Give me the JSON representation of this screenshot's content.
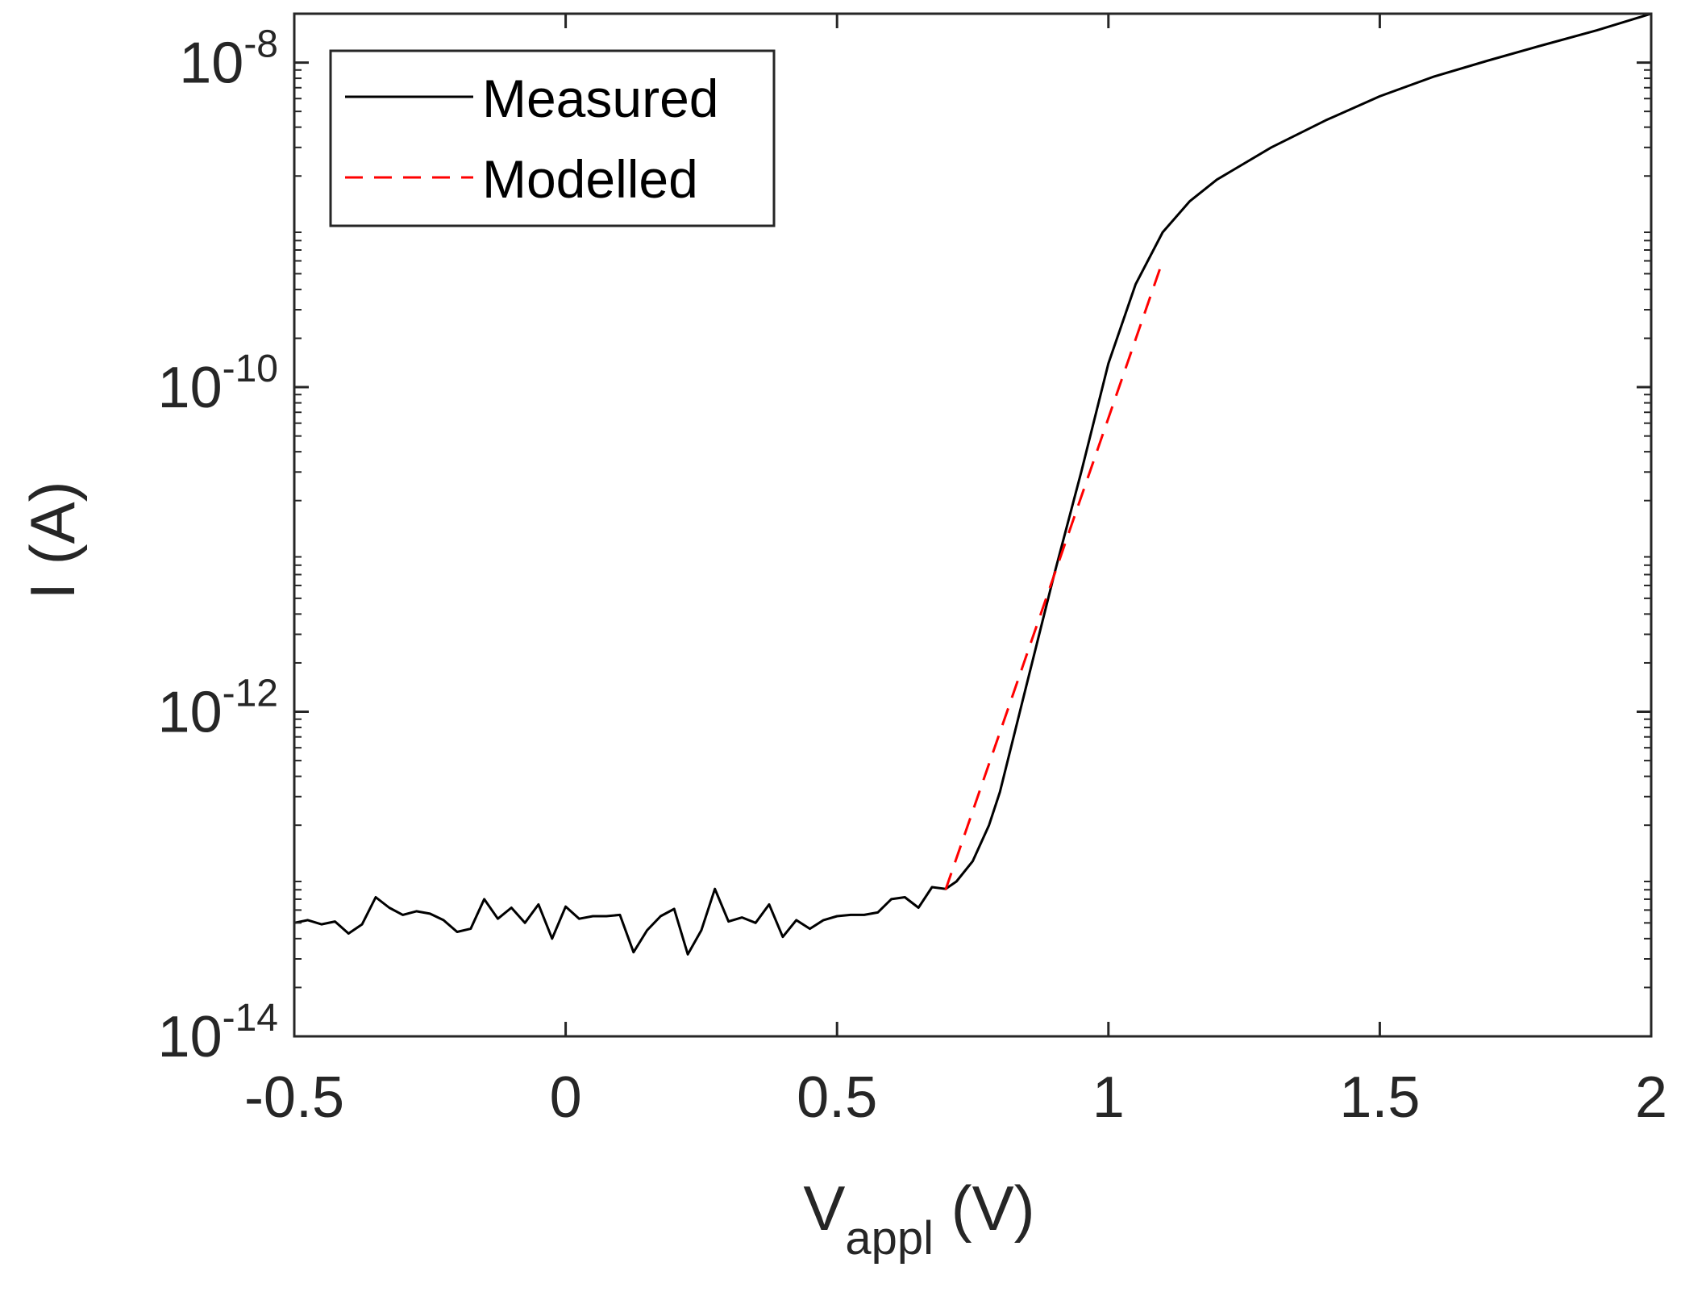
{
  "chart_data": {
    "type": "line",
    "title": "",
    "xlabel": {
      "base": "V",
      "subscript": "appl",
      "suffix": " (V)"
    },
    "ylabel": "I (A)",
    "xlim": [
      -0.5,
      2
    ],
    "ylim": [
      1e-14,
      2e-08
    ],
    "yscale": "log",
    "x_ticks": [
      {
        "value": -0.5,
        "label": "-0.5"
      },
      {
        "value": 0,
        "label": "0"
      },
      {
        "value": 0.5,
        "label": "0.5"
      },
      {
        "value": 1,
        "label": "1"
      },
      {
        "value": 1.5,
        "label": "1.5"
      },
      {
        "value": 2,
        "label": "2"
      }
    ],
    "y_ticks": [
      {
        "value": 1e-14,
        "base": "10",
        "exponent": "-14"
      },
      {
        "value": 1e-12,
        "base": "10",
        "exponent": "-12"
      },
      {
        "value": 1e-10,
        "base": "10",
        "exponent": "-10"
      },
      {
        "value": 1e-08,
        "base": "10",
        "exponent": "-8"
      }
    ],
    "grid": false,
    "legend": {
      "position": "top-left",
      "entries": [
        "Measured",
        "Modelled"
      ]
    },
    "series": [
      {
        "name": "Measured",
        "color": "#000000",
        "style": "solid",
        "x": [
          -0.5,
          -0.475,
          -0.45,
          -0.425,
          -0.4,
          -0.375,
          -0.35,
          -0.325,
          -0.3,
          -0.275,
          -0.25,
          -0.225,
          -0.2,
          -0.175,
          -0.15,
          -0.125,
          -0.1,
          -0.075,
          -0.05,
          -0.025,
          0.0,
          0.025,
          0.05,
          0.075,
          0.1,
          0.125,
          0.15,
          0.175,
          0.2,
          0.225,
          0.25,
          0.275,
          0.3,
          0.325,
          0.35,
          0.375,
          0.4,
          0.425,
          0.45,
          0.475,
          0.5,
          0.525,
          0.55,
          0.575,
          0.6,
          0.625,
          0.65,
          0.675,
          0.7,
          0.72,
          0.75,
          0.78,
          0.8,
          0.85,
          0.9,
          0.95,
          1.0,
          1.05,
          1.1,
          1.15,
          1.2,
          1.3,
          1.4,
          1.5,
          1.6,
          1.7,
          1.8,
          1.9,
          2.0
        ],
        "y": [
          5e-14,
          5.2e-14,
          4.9e-14,
          5.1e-14,
          4.3e-14,
          4.9e-14,
          7.2e-14,
          6.2e-14,
          5.6e-14,
          5.9e-14,
          5.7e-14,
          5.2e-14,
          4.4e-14,
          4.6e-14,
          7e-14,
          5.3e-14,
          6.2e-14,
          5e-14,
          6.5e-14,
          4e-14,
          6.3e-14,
          5.3e-14,
          5.5e-14,
          5.5e-14,
          5.6e-14,
          3.3e-14,
          4.5e-14,
          5.5e-14,
          6.1e-14,
          3.2e-14,
          4.5e-14,
          8.1e-14,
          5.1e-14,
          5.4e-14,
          5e-14,
          6.5e-14,
          4.1e-14,
          5.2e-14,
          4.6e-14,
          5.2e-14,
          5.5e-14,
          5.6e-14,
          5.6e-14,
          5.8e-14,
          7e-14,
          7.2e-14,
          6.2e-14,
          8.3e-14,
          8.1e-14,
          9e-14,
          1.2e-13,
          2e-13,
          3.2e-13,
          1.5e-12,
          7e-12,
          3e-11,
          1.4e-10,
          4.3e-10,
          9e-10,
          1.4e-09,
          1.9e-09,
          3e-09,
          4.4e-09,
          6.2e-09,
          8.2e-09,
          1.03e-08,
          1.28e-08,
          1.58e-08,
          2e-08
        ]
      },
      {
        "name": "Modelled",
        "color": "#ff0000",
        "style": "dashed",
        "x": [
          0.7,
          1.1
        ],
        "y": [
          8e-14,
          6e-10
        ]
      }
    ]
  }
}
